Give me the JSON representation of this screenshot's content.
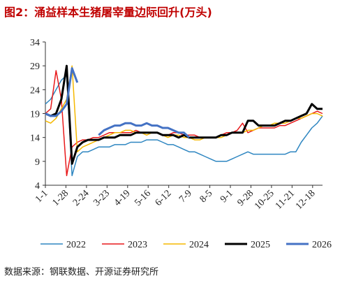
{
  "chart_data": {
    "type": "line",
    "title": "图2：涌益样本生猪屠宰量边际回升(万头)",
    "source": "数据来源：钢联数据、开源证券研究所",
    "x": [
      0,
      7,
      14,
      21,
      28,
      35,
      42,
      49,
      56,
      63,
      70,
      77,
      84,
      91,
      98,
      105,
      112,
      119,
      126,
      133,
      140,
      147,
      154,
      161,
      168,
      175,
      182,
      189,
      196,
      203,
      210,
      217,
      224,
      231,
      238,
      245,
      252,
      259,
      266,
      273,
      280,
      287,
      294,
      301,
      308,
      315,
      322,
      329,
      336,
      343,
      350,
      357,
      364
    ],
    "xlim": [
      0,
      364
    ],
    "xticks": [
      {
        "value": 0,
        "label": "1-1"
      },
      {
        "value": 27,
        "label": "1-28"
      },
      {
        "value": 54,
        "label": "2-24"
      },
      {
        "value": 81,
        "label": "3-23"
      },
      {
        "value": 108,
        "label": "4-19"
      },
      {
        "value": 135,
        "label": "5-16"
      },
      {
        "value": 162,
        "label": "6-12"
      },
      {
        "value": 189,
        "label": "7-9"
      },
      {
        "value": 216,
        "label": "8-5"
      },
      {
        "value": 243,
        "label": "9-1"
      },
      {
        "value": 270,
        "label": "9-28"
      },
      {
        "value": 297,
        "label": "10-25"
      },
      {
        "value": 324,
        "label": "11-21"
      },
      {
        "value": 351,
        "label": "12-18"
      }
    ],
    "ylim": [
      4,
      34
    ],
    "yticks": [
      4,
      9,
      14,
      19,
      24,
      29,
      34
    ],
    "series": [
      {
        "name": "2022",
        "color": "#2e86c1",
        "width": 1.5,
        "values": [
          21,
          22,
          24,
          26,
          27,
          6,
          10,
          11,
          11,
          11.5,
          12,
          12,
          12,
          12.5,
          12.5,
          12.5,
          13,
          13,
          13,
          13.5,
          13.5,
          13.5,
          13,
          12.5,
          12.5,
          12,
          11.5,
          11,
          11,
          10.5,
          10,
          9.5,
          9,
          9,
          9,
          9.5,
          10,
          10.5,
          11,
          10.5,
          10.5,
          10.5,
          10.5,
          10.5,
          10.5,
          10.5,
          11,
          11,
          13,
          14.5,
          16,
          17,
          18.5
        ]
      },
      {
        "name": "2023",
        "color": "#e8191b",
        "width": 1.5,
        "values": [
          19,
          20,
          28,
          22,
          6,
          12,
          13,
          13.5,
          13.5,
          14,
          14,
          14.5,
          15,
          15,
          15,
          15,
          15,
          15.5,
          15,
          15,
          15,
          15,
          14.5,
          14.5,
          15,
          15,
          14.5,
          14.5,
          14.5,
          14,
          14,
          14,
          14,
          14.5,
          15,
          15,
          15.5,
          17,
          15,
          15.5,
          16,
          16,
          16,
          16,
          16.5,
          16.5,
          17,
          17.5,
          18,
          18.5,
          19,
          19.5,
          19
        ]
      },
      {
        "name": "2024",
        "color": "#f5b800",
        "width": 1.5,
        "values": [
          17.5,
          17,
          18,
          20,
          22,
          29,
          11,
          12,
          12.5,
          13,
          13.5,
          14,
          14.5,
          15,
          15,
          15.5,
          15.5,
          15,
          15,
          14.5,
          15,
          15,
          14.5,
          14,
          14.5,
          14.5,
          14,
          14,
          13.5,
          13.5,
          14,
          14,
          14,
          14,
          14.5,
          15,
          15,
          15,
          15.5,
          15.5,
          16,
          16.5,
          16.5,
          17,
          17,
          17,
          17.5,
          18,
          18,
          18.5,
          19,
          19,
          18.5
        ]
      },
      {
        "name": "2025",
        "color": "#000000",
        "width": 3,
        "values": [
          19,
          18.5,
          19,
          22,
          29,
          8.5,
          12,
          13,
          13.5,
          13.5,
          13.5,
          14,
          14,
          14,
          14.5,
          14.5,
          14.5,
          15,
          15,
          15,
          15,
          15,
          14.5,
          14.5,
          14.5,
          14,
          14.5,
          14,
          14,
          14,
          14,
          14,
          14,
          14.5,
          14.5,
          15,
          15,
          15,
          17.5,
          17.5,
          16.5,
          16.5,
          16.5,
          16.5,
          17,
          17.5,
          17.5,
          18,
          18.5,
          19,
          21,
          20,
          20
        ]
      },
      {
        "name": "2026",
        "color": "#4472c4",
        "width": 3,
        "values": [
          19,
          18.5,
          18.5,
          19.5,
          21,
          28.5,
          25.5,
          null,
          null,
          null,
          14.5,
          15.5,
          16,
          16.5,
          16.5,
          17,
          17,
          16.5,
          16.5,
          17,
          16.5,
          16.5,
          16,
          16,
          15.5,
          15,
          15,
          14,
          null,
          null,
          null,
          null,
          null,
          null,
          null,
          null,
          null,
          null,
          null,
          null,
          null,
          null,
          null,
          null,
          null,
          null,
          null,
          null,
          null,
          null,
          null,
          null,
          null
        ]
      }
    ]
  }
}
